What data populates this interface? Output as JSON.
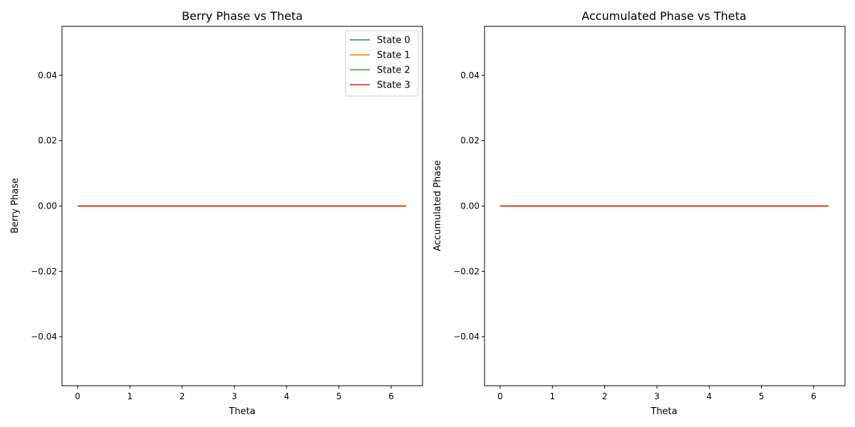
{
  "chart_data": [
    {
      "type": "line",
      "title": "Berry Phase vs Theta",
      "xlabel": "Theta",
      "ylabel": "Berry Phase",
      "xlim": [
        -0.3,
        6.6
      ],
      "ylim": [
        -0.055,
        0.055
      ],
      "xticks": [
        0,
        1,
        2,
        3,
        4,
        5,
        6
      ],
      "xtick_labels": [
        "0",
        "1",
        "2",
        "3",
        "4",
        "5",
        "6"
      ],
      "yticks": [
        -0.04,
        -0.02,
        0.0,
        0.02,
        0.04
      ],
      "ytick_labels": [
        "−0.04",
        "−0.02",
        "0.00",
        "0.02",
        "0.04"
      ],
      "grid": false,
      "legend": "top-right",
      "series": [
        {
          "name": "State 0",
          "color": "#1f77b4",
          "x": [
            0,
            6.283
          ],
          "y": [
            0,
            0
          ]
        },
        {
          "name": "State 1",
          "color": "#ff7f0e",
          "x": [
            0,
            6.283
          ],
          "y": [
            0,
            0
          ]
        },
        {
          "name": "State 2",
          "color": "#2ca02c",
          "x": [
            0,
            6.283
          ],
          "y": [
            0,
            0
          ]
        },
        {
          "name": "State 3",
          "color": "#d62728",
          "x": [
            0,
            6.283
          ],
          "y": [
            0,
            0
          ]
        }
      ]
    },
    {
      "type": "line",
      "title": "Accumulated Phase vs Theta",
      "xlabel": "Theta",
      "ylabel": "Accumulated Phase",
      "xlim": [
        -0.3,
        6.6
      ],
      "ylim": [
        -0.055,
        0.055
      ],
      "xticks": [
        0,
        1,
        2,
        3,
        4,
        5,
        6
      ],
      "xtick_labels": [
        "0",
        "1",
        "2",
        "3",
        "4",
        "5",
        "6"
      ],
      "yticks": [
        -0.04,
        -0.02,
        0.0,
        0.02,
        0.04
      ],
      "ytick_labels": [
        "−0.04",
        "−0.02",
        "0.00",
        "0.02",
        "0.04"
      ],
      "grid": false,
      "legend": "none",
      "series": [
        {
          "color": "#1f77b4",
          "x": [
            0,
            6.283
          ],
          "y": [
            0,
            0
          ]
        },
        {
          "color": "#ff7f0e",
          "x": [
            0,
            6.283
          ],
          "y": [
            0,
            0
          ]
        },
        {
          "color": "#2ca02c",
          "x": [
            0,
            6.283
          ],
          "y": [
            0,
            0
          ]
        },
        {
          "color": "#d62728",
          "x": [
            0,
            6.283
          ],
          "y": [
            0,
            0
          ]
        }
      ]
    }
  ]
}
